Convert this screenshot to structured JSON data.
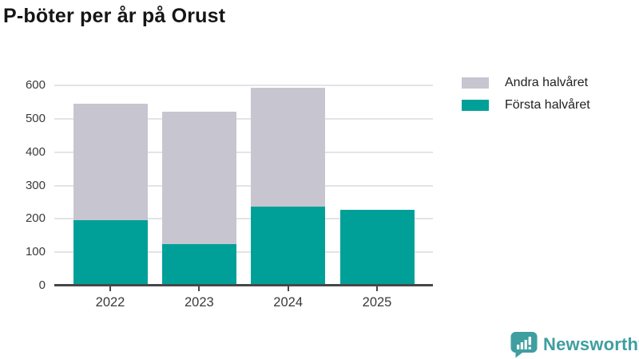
{
  "title": "P-böter per år på Orust",
  "chart_data": {
    "type": "bar",
    "stacked": true,
    "title": "P-böter per år på Orust",
    "categories": [
      "2022",
      "2023",
      "2024",
      "2025"
    ],
    "series": [
      {
        "name": "Första halvåret",
        "color": "#00a099",
        "values": [
          195,
          124,
          236,
          227
        ]
      },
      {
        "name": "Andra halvåret",
        "color": "#c7c5d0",
        "values": [
          350,
          398,
          358,
          0
        ]
      }
    ],
    "totals": [
      545,
      522,
      594,
      227
    ],
    "xlabel": "",
    "ylabel": "",
    "ylim": [
      0,
      600
    ],
    "yticks": [
      0,
      100,
      200,
      300,
      400,
      500,
      600
    ],
    "grid": true,
    "legend_position": "top-right",
    "legend_display_order": [
      "Andra halvåret",
      "Första halvåret"
    ]
  },
  "branding": {
    "logo_text": "Newsworthy",
    "logo_color": "#3f9ea0",
    "icon": "bar-chart-speech-bubble-icon"
  },
  "colors": {
    "first_half": "#00a099",
    "second_half": "#c7c5d0",
    "gridline": "#e4e3e7",
    "axis": "#474747",
    "tick_text": "#3a3a3a",
    "title_text": "#151515"
  }
}
